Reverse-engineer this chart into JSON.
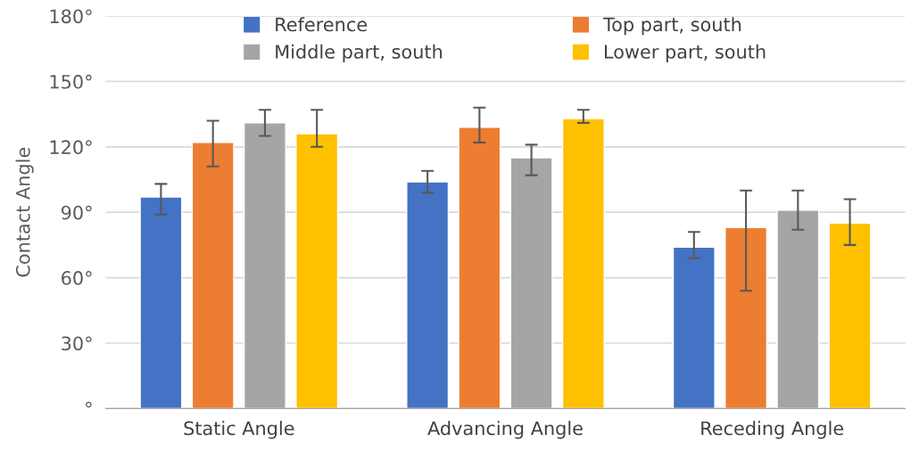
{
  "chart_data": {
    "type": "bar",
    "ylabel": "Contact Angle",
    "categories": [
      "Static Angle",
      "Advancing Angle",
      "Receding Angle"
    ],
    "series": [
      {
        "name": "Reference",
        "color": "#4472c4",
        "values": [
          97,
          104,
          74
        ],
        "errors": [
          [
            89,
            103
          ],
          [
            99,
            109
          ],
          [
            69,
            81
          ]
        ]
      },
      {
        "name": "Top part, south",
        "color": "#ed7d31",
        "values": [
          122,
          129,
          83
        ],
        "errors": [
          [
            111,
            132
          ],
          [
            122,
            138
          ],
          [
            54,
            100
          ]
        ]
      },
      {
        "name": "Middle part, south",
        "color": "#a5a5a5",
        "values": [
          131,
          115,
          91
        ],
        "errors": [
          [
            125,
            137
          ],
          [
            107,
            121
          ],
          [
            82,
            100
          ]
        ]
      },
      {
        "name": "Lower part, south",
        "color": "#ffc000",
        "values": [
          126,
          133,
          85
        ],
        "errors": [
          [
            120,
            137
          ],
          [
            131,
            137
          ],
          [
            75,
            96
          ]
        ]
      }
    ],
    "ylim": [
      0,
      180
    ],
    "yticks": [
      {
        "value": 0,
        "label": "°"
      },
      {
        "value": 30,
        "label": "30°"
      },
      {
        "value": 60,
        "label": "60°"
      },
      {
        "value": 90,
        "label": "90°"
      },
      {
        "value": 120,
        "label": "120°"
      },
      {
        "value": 150,
        "label": "150°"
      },
      {
        "value": 180,
        "label": "180°"
      }
    ],
    "grid": "y",
    "legend": "top"
  }
}
